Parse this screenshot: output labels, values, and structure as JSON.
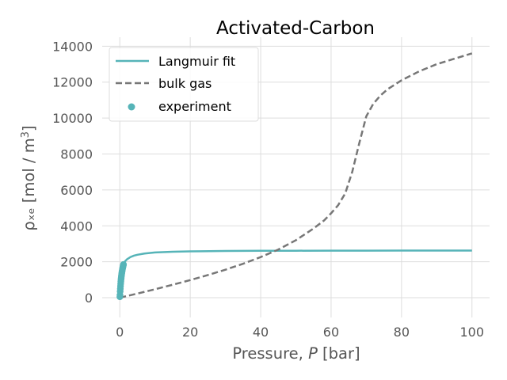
{
  "chart_data": {
    "type": "line",
    "title": "Activated-Carbon",
    "xlabel_prefix": "Pressure, ",
    "xlabel_var": "P",
    "xlabel_suffix": " [bar]",
    "ylabel_main": "ρₓₑ [mol / m",
    "ylabel_sup": "3",
    "ylabel_close": "]",
    "xlim": [
      -5,
      105
    ],
    "ylim": [
      -1100,
      14500
    ],
    "xticks": [
      0,
      20,
      40,
      60,
      80,
      100
    ],
    "yticks": [
      0,
      2000,
      4000,
      6000,
      8000,
      10000,
      12000,
      14000
    ],
    "grid": true,
    "legend_position": "upper-left",
    "colors": {
      "langmuir": "#56b4b8",
      "bulk": "#777777",
      "experiment": "#56b4b8",
      "grid": "#dddddd",
      "text": "#555555"
    },
    "series": [
      {
        "name": "Langmuir fit",
        "kind": "line",
        "x": [
          0,
          0.1,
          0.2,
          0.3,
          0.5,
          0.75,
          1,
          1.5,
          2,
          3,
          4,
          5,
          7,
          10,
          15,
          20,
          30,
          40,
          50,
          60,
          70,
          80,
          90,
          100
        ],
        "y": [
          0,
          590,
          960,
          1210,
          1500,
          1720,
          1860,
          2030,
          2130,
          2260,
          2340,
          2390,
          2460,
          2520,
          2560,
          2580,
          2600,
          2610,
          2615,
          2618,
          2620,
          2622,
          2623,
          2624
        ]
      },
      {
        "name": "bulk gas",
        "kind": "dashed-line",
        "x": [
          0,
          5,
          10,
          15,
          20,
          25,
          30,
          35,
          40,
          45,
          50,
          55,
          58,
          60,
          62,
          64,
          66,
          68,
          70,
          72,
          74,
          76,
          80,
          85,
          90,
          95,
          100
        ],
        "y": [
          0,
          230,
          470,
          720,
          980,
          1260,
          1560,
          1890,
          2260,
          2680,
          3200,
          3850,
          4300,
          4700,
          5150,
          5800,
          7000,
          8600,
          10100,
          10800,
          11250,
          11600,
          12100,
          12600,
          13000,
          13300,
          13600
        ]
      },
      {
        "name": "experiment",
        "kind": "scatter",
        "x": [
          0.02,
          0.05,
          0.1,
          0.15,
          0.2,
          0.25,
          0.3,
          0.35,
          0.4,
          0.45,
          0.5,
          0.55,
          0.6,
          0.65,
          0.7,
          0.75,
          0.8,
          0.85,
          0.9,
          0.95,
          1.0,
          1.05
        ],
        "y": [
          50,
          150,
          350,
          500,
          650,
          780,
          900,
          1010,
          1100,
          1190,
          1270,
          1340,
          1410,
          1470,
          1530,
          1590,
          1640,
          1690,
          1730,
          1770,
          1810,
          1850
        ]
      }
    ]
  }
}
